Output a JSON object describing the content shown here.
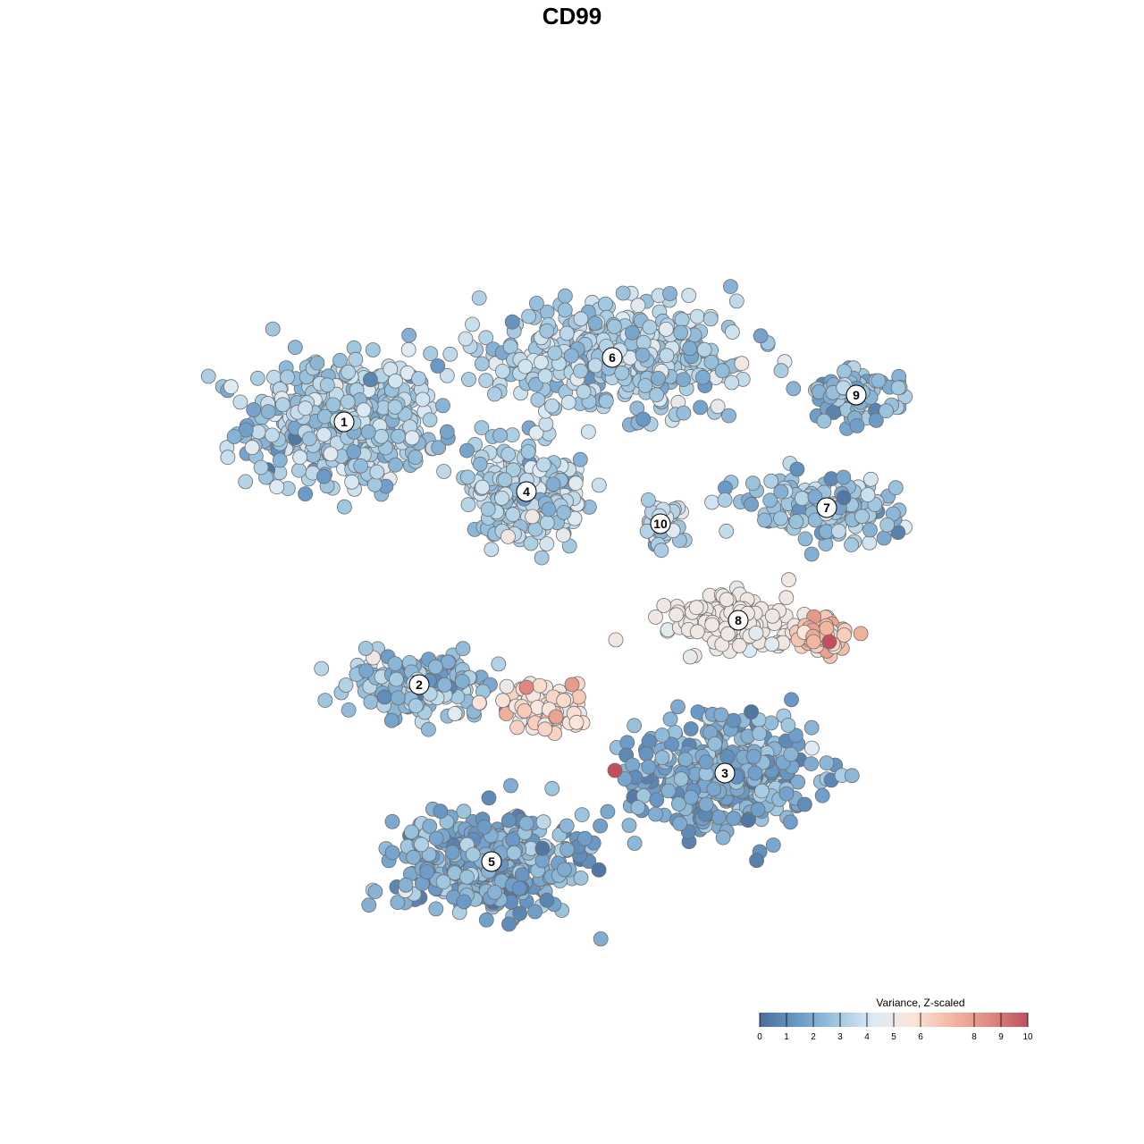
{
  "chart_data": {
    "type": "scatter",
    "title": "CD99",
    "xlabel": "",
    "ylabel": "",
    "grid": false,
    "axes_shown": false,
    "point_style": "filled circles with dark gray outline",
    "colorbar": {
      "title": "Variance, Z-scaled",
      "range": [
        0,
        10
      ],
      "ticks": [
        "0",
        "1",
        "2",
        "3",
        "4",
        "5",
        "6",
        "8",
        "9",
        "10"
      ],
      "tick_values": [
        0,
        1,
        2,
        3,
        4,
        5,
        6,
        8,
        9,
        10
      ],
      "colors": [
        "#4a6e99",
        "#6b9ac8",
        "#9ec6df",
        "#ddebf4",
        "#fbe5d9",
        "#f3b8a1",
        "#e08a7f",
        "#c24e5e"
      ],
      "placement": "bottom-right"
    },
    "clusters": [
      {
        "label": "1",
        "center": [
          -8.5,
          5.6
        ],
        "mean_value": 3.0,
        "spread": [
          3.2,
          2.1
        ],
        "n": 520
      },
      {
        "label": "2",
        "center": [
          -5.7,
          -4.2
        ],
        "mean_value": 2.7,
        "spread": [
          2.6,
          1.1
        ],
        "n": 170
      },
      {
        "label": "3",
        "center": [
          5.7,
          -7.5
        ],
        "mean_value": 2.0,
        "spread": [
          3.0,
          2.0
        ],
        "n": 380
      },
      {
        "label": "4",
        "center": [
          -1.7,
          3.0
        ],
        "mean_value": 3.2,
        "spread": [
          2.0,
          1.5
        ],
        "n": 240
      },
      {
        "label": "5",
        "center": [
          -3.0,
          -10.8
        ],
        "mean_value": 1.9,
        "spread": [
          3.1,
          1.7
        ],
        "n": 420
      },
      {
        "label": "6",
        "center": [
          1.5,
          8.0
        ],
        "mean_value": 3.1,
        "spread": [
          4.4,
          1.7
        ],
        "n": 430
      },
      {
        "label": "7",
        "center": [
          9.5,
          2.4
        ],
        "mean_value": 2.7,
        "spread": [
          2.8,
          1.0
        ],
        "n": 150
      },
      {
        "label": "8",
        "center": [
          6.2,
          -1.8
        ],
        "mean_value": 5.6,
        "spread": [
          2.3,
          0.9
        ],
        "n": 150
      },
      {
        "label": "9",
        "center": [
          10.6,
          6.6
        ],
        "mean_value": 2.2,
        "spread": [
          1.6,
          0.9
        ],
        "n": 90
      },
      {
        "label": "10",
        "center": [
          3.3,
          1.8
        ],
        "mean_value": 3.2,
        "spread": [
          0.6,
          0.8
        ],
        "n": 40
      }
    ],
    "highlights": [
      {
        "x": 9.6,
        "y": -2.6,
        "value": 10
      },
      {
        "x": 1.6,
        "y": -7.4,
        "value": 10
      },
      {
        "x": -1.7,
        "y": -4.3,
        "value": 8.6
      },
      {
        "x": 0.0,
        "y": -4.2,
        "value": 8.0
      },
      {
        "x": -0.6,
        "y": -5.4,
        "value": 7.8
      }
    ],
    "hot_regions": [
      {
        "center": [
          9.3,
          -2.4
        ],
        "spread": [
          0.9,
          0.6
        ],
        "mean_value": 6.6,
        "n": 70
      },
      {
        "center": [
          -1.0,
          -5.0
        ],
        "spread": [
          1.6,
          1.0
        ],
        "mean_value": 5.8,
        "n": 70
      }
    ],
    "xlim": [
      -16,
      16
    ],
    "ylim": [
      -16,
      16
    ]
  }
}
